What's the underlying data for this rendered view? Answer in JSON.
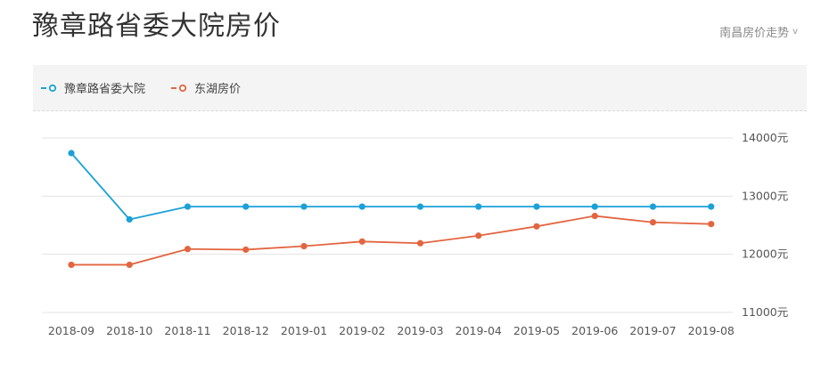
{
  "header": {
    "title": "豫章路省委大院房价",
    "trend_link_label": "南昌房价走势",
    "trend_link_chevron": "v"
  },
  "colors": {
    "series_1": "#1ba1d8",
    "series_2": "#e2653f",
    "grid": "#e3e3e3",
    "legend_bg": "#f4f4f4"
  },
  "chart_data": {
    "type": "line",
    "x": [
      "2018-09",
      "2018-10",
      "2018-11",
      "2018-12",
      "2019-01",
      "2019-02",
      "2019-03",
      "2019-04",
      "2019-05",
      "2019-06",
      "2019-07",
      "2019-08"
    ],
    "series": [
      {
        "name": "豫章路省委大院",
        "color": "#1ba1d8",
        "values": [
          13740,
          12600,
          12820,
          12820,
          12820,
          12820,
          12820,
          12820,
          12820,
          12820,
          12820,
          12820
        ]
      },
      {
        "name": "东湖房价",
        "color": "#e2653f",
        "values": [
          11820,
          11820,
          12090,
          12080,
          12140,
          12220,
          12190,
          12320,
          12480,
          12660,
          12550,
          12520
        ]
      }
    ],
    "ylim": [
      11000,
      14000
    ],
    "yticks": [
      {
        "value": 14000,
        "label": "14000元"
      },
      {
        "value": 13000,
        "label": "13000元"
      },
      {
        "value": 12000,
        "label": "12000元"
      },
      {
        "value": 11000,
        "label": "11000元"
      }
    ],
    "y_axis_side": "right",
    "grid": true,
    "legend_position": "top-left"
  }
}
